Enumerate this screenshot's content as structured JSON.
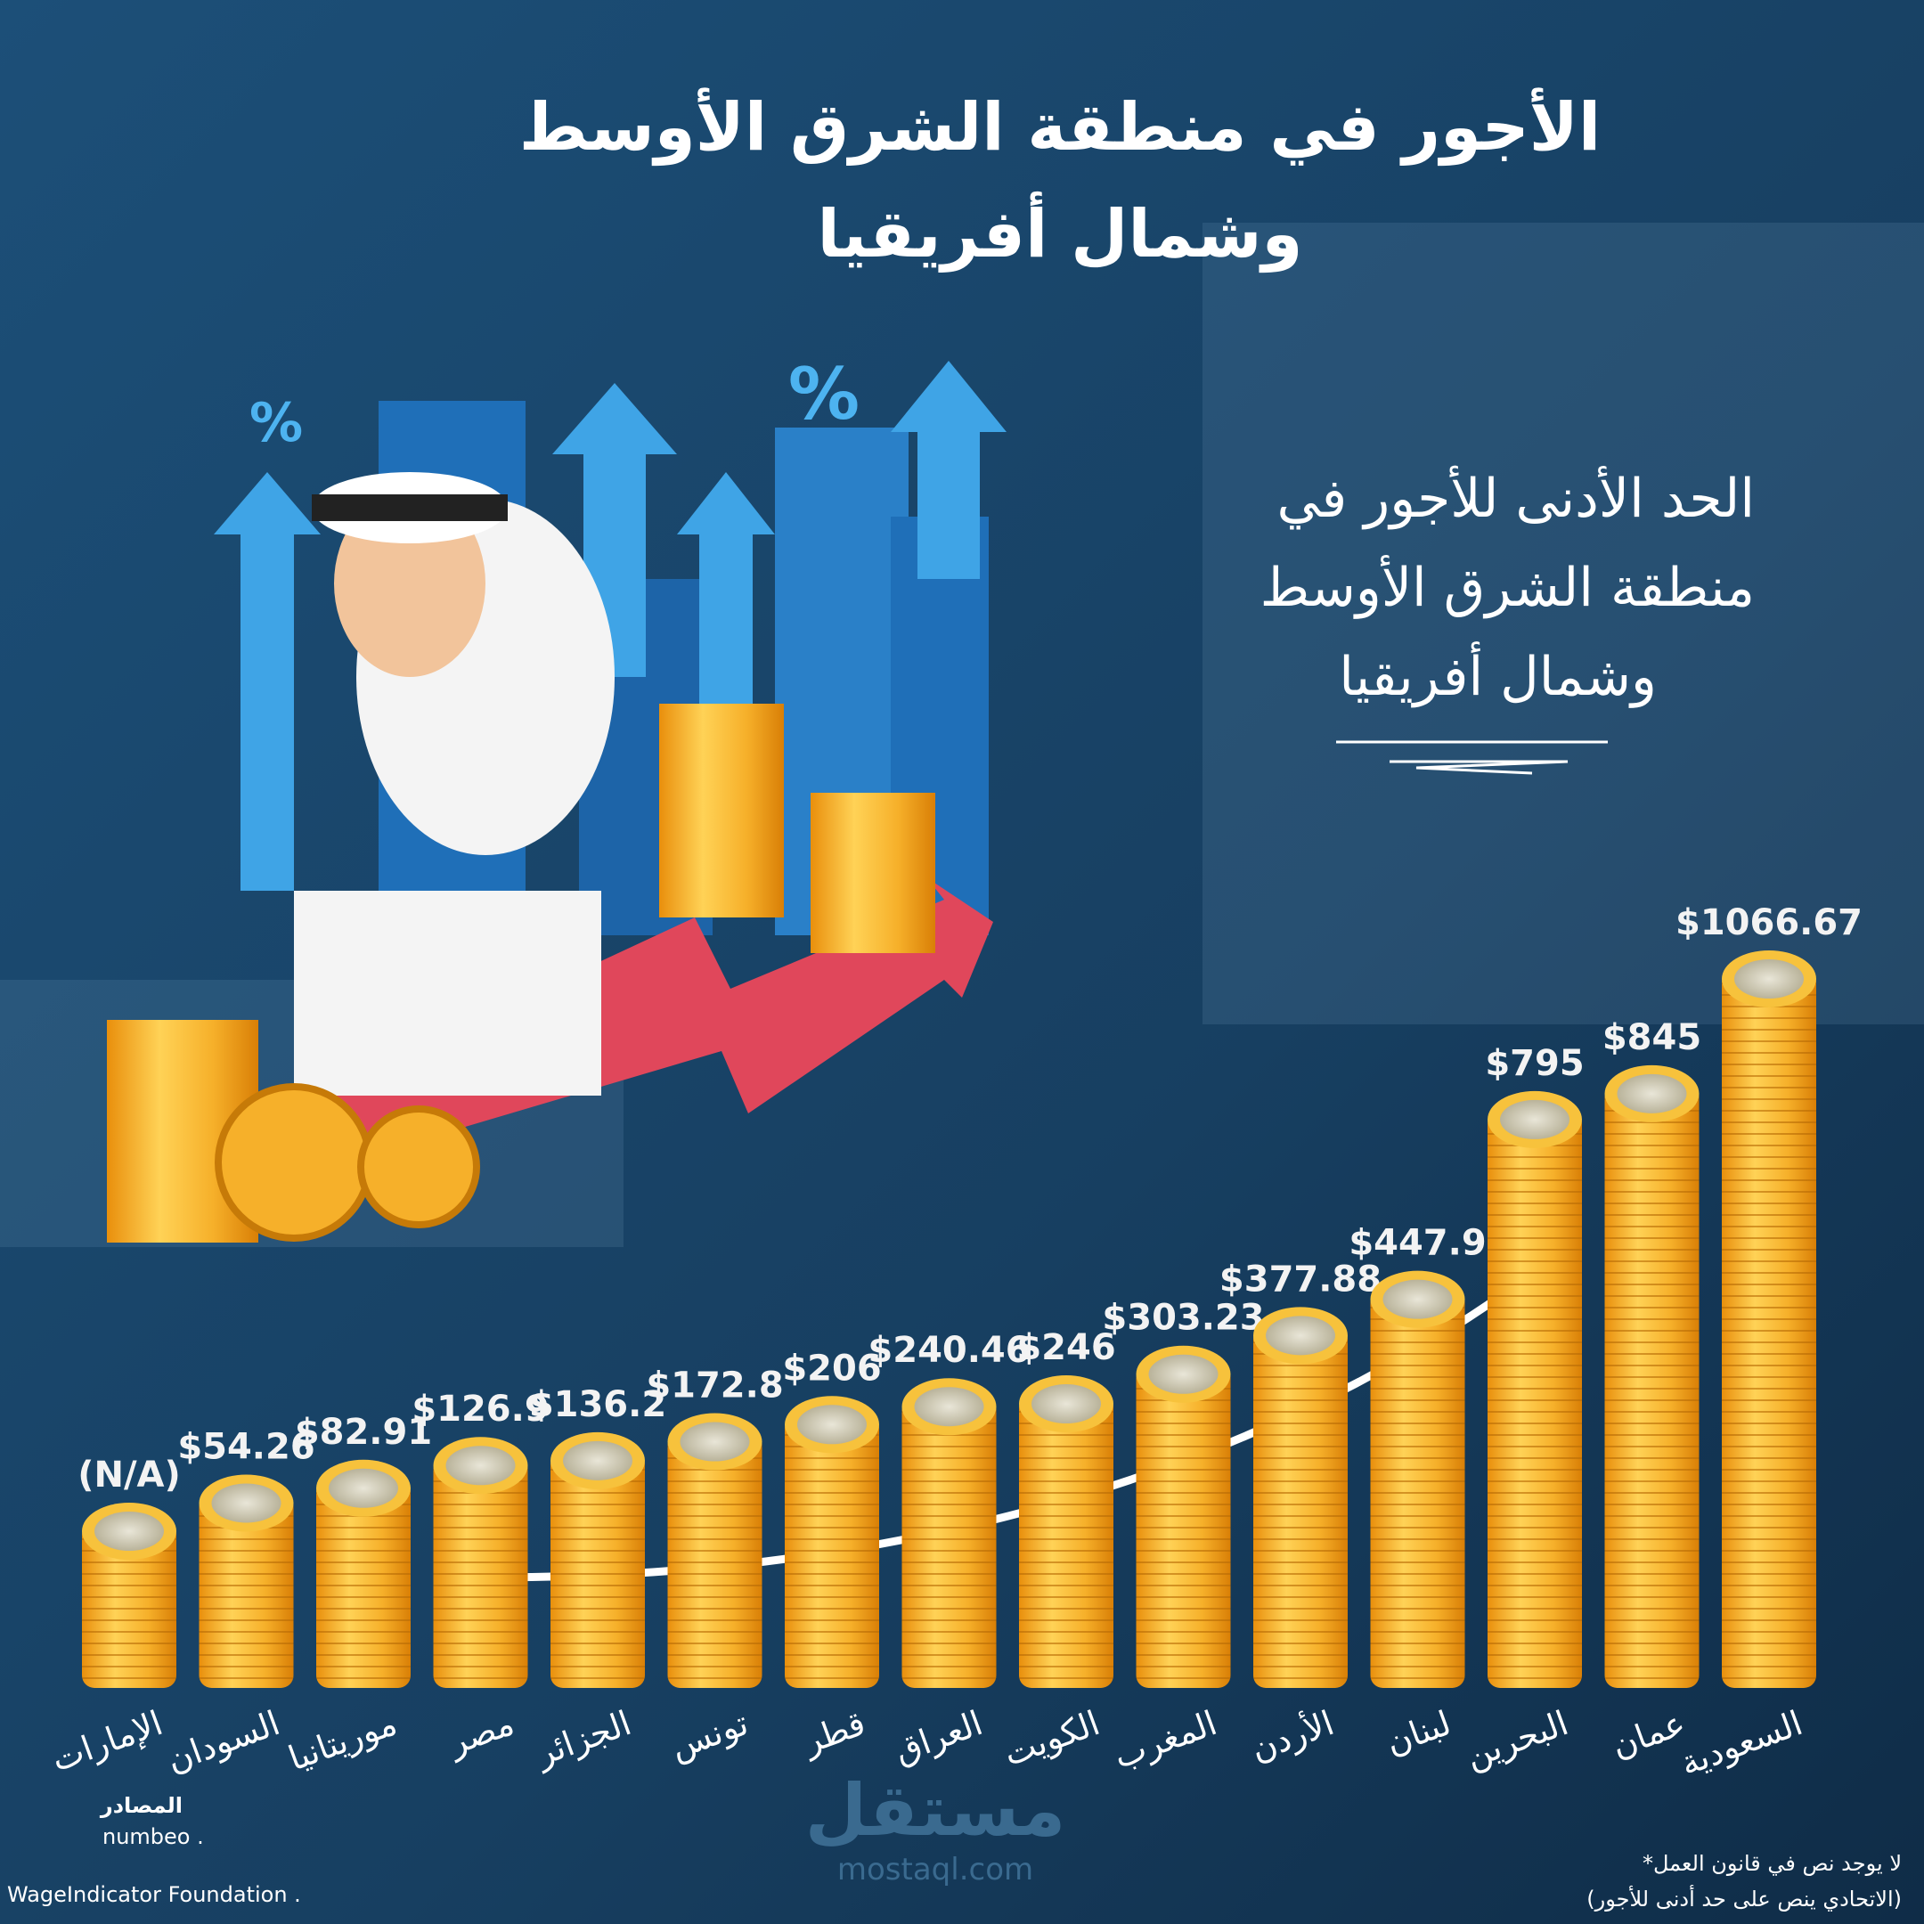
{
  "chart_data": {
    "type": "coin-stack",
    "title": [
      "الأجور في منطقة الشرق الأوسط",
      "وشمال أفريقيا"
    ],
    "subtitle": [
      "الحد الأدنى للأجور في",
      "منطقة الشرق الأوسط",
      "وشمال أفريقيا"
    ],
    "categories": [
      "الإمارات",
      "السودان",
      "موريتانيا",
      "مصر",
      "الجزائر",
      "تونس",
      "قطر",
      "العراق",
      "الكويت",
      "المغرب",
      "الأردن",
      "لبنان",
      "البحرين",
      "عمان",
      "السعودية"
    ],
    "values": [
      null,
      54.26,
      82.91,
      126.9,
      136.2,
      172.8,
      206,
      240.46,
      246,
      303.23,
      377.88,
      447.9,
      795,
      845,
      1066.67
    ],
    "value_labels": [
      "(N/A)",
      "$54.26",
      "$82.91",
      "$126.9",
      "$136.2",
      "$172.8",
      "$206",
      "$240.46",
      "$246",
      "$303.23",
      "$377.88",
      "$447.9",
      "$795",
      "$845",
      "$1066.67"
    ],
    "color": "#f2a91e",
    "sources": {
      "heading": "المصادر",
      "items": [
        "numbeo .",
        "WageIndicator Foundation ."
      ]
    },
    "footnote": [
      "لا يوجد نص في قانون العمل*",
      "(الاتحادي ينص على حد أدنى للأجور)"
    ],
    "logo": {
      "name": "مستقل",
      "url": "mostaql.com"
    }
  }
}
